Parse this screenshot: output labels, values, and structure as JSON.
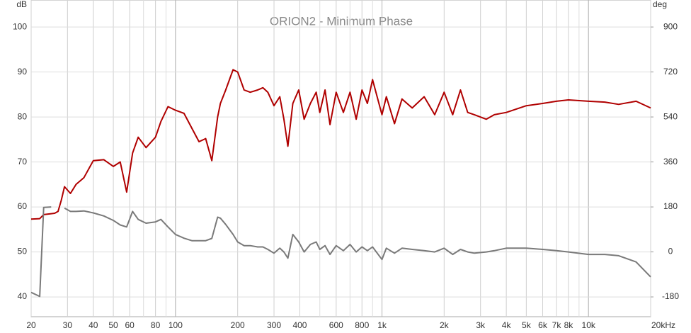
{
  "chart_data": {
    "type": "line",
    "title": "ORION2 - Minimum Phase",
    "ylabel": "dB",
    "y2label": "deg",
    "xscale": "log",
    "grid": true,
    "x": [
      20,
      22,
      23,
      25,
      26,
      27,
      28,
      29,
      31,
      33,
      36,
      40,
      45,
      50,
      54,
      58,
      62,
      66,
      72,
      80,
      85,
      92,
      100,
      110,
      120,
      130,
      140,
      150,
      160,
      165,
      175,
      190,
      200,
      215,
      230,
      250,
      265,
      280,
      300,
      320,
      335,
      350,
      370,
      395,
      420,
      450,
      480,
      500,
      530,
      560,
      600,
      650,
      700,
      750,
      800,
      850,
      900,
      1000,
      1050,
      1150,
      1250,
      1400,
      1600,
      1800,
      2000,
      2200,
      2400,
      2600,
      2800,
      3200,
      3500,
      4000,
      5000,
      6000,
      7000,
      8000,
      10000,
      12000,
      14000,
      17000,
      20000
    ],
    "series": [
      {
        "color": "#b00000",
        "values": [
          57.3,
          57.4,
          58.3,
          58.5,
          58.6,
          59,
          61.5,
          64.5,
          63,
          65,
          66.5,
          70.3,
          70.5,
          69,
          70,
          63.3,
          72,
          75.5,
          73.2,
          75.5,
          79,
          82.3,
          81.5,
          80.8,
          77.5,
          74.5,
          75.2,
          70.3,
          80,
          83,
          86,
          90.5,
          90,
          86,
          85.5,
          86,
          86.5,
          85.5,
          82.5,
          84.5,
          79.5,
          73.5,
          83,
          86,
          79.5,
          83,
          85.5,
          81,
          86,
          78.3,
          85.5,
          81,
          85.5,
          79.5,
          86,
          83,
          88.3,
          80.5,
          84.5,
          78.5,
          84,
          82,
          84.5,
          80.5,
          85.5,
          80.5,
          86,
          81,
          80.5,
          79.5,
          80.5,
          81,
          82.5,
          83,
          83.5,
          83.8,
          83.5,
          83.3,
          82.8,
          83.5,
          82
        ]
      },
      {
        "color": "#7a7a7a",
        "axis": "y2",
        "values": [
          -162,
          -178,
          178,
          180,
          null,
          -178,
          null,
          175,
          162,
          162,
          164,
          156,
          144,
          126,
          108,
          100,
          162,
          130,
          115,
          120,
          130,
          100,
          70,
          55,
          45,
          45,
          45,
          54,
          139,
          135,
          110,
          70,
          40,
          25,
          25,
          20,
          20,
          10,
          -5,
          15,
          0,
          -25,
          70,
          40,
          0,
          30,
          40,
          10,
          25,
          -10,
          25,
          5,
          30,
          0,
          20,
          5,
          20,
          -30,
          15,
          -5,
          15,
          10,
          5,
          0,
          15,
          -10,
          10,
          0,
          -5,
          0,
          5,
          15,
          15,
          10,
          5,
          0,
          -10,
          -10,
          -15,
          -40,
          -100
        ]
      }
    ],
    "xlim": [
      20,
      20000
    ],
    "xticks": [
      20,
      30,
      40,
      50,
      60,
      80,
      100,
      200,
      300,
      400,
      600,
      800,
      {
        "value": 1000,
        "label": "1k"
      },
      {
        "value": 2000,
        "label": "2k"
      },
      {
        "value": 3000,
        "label": "3k"
      },
      {
        "value": 4000,
        "label": "4k"
      },
      {
        "value": 5000,
        "label": "5k"
      },
      {
        "value": 6000,
        "label": "6k"
      },
      {
        "value": 7000,
        "label": "7k"
      },
      {
        "value": 8000,
        "label": "8k"
      },
      {
        "value": 10000,
        "label": "10k"
      },
      {
        "value": 20000,
        "label": "20kHz"
      }
    ],
    "ylim": [
      35.6,
      106
    ],
    "yticks": [
      40,
      50,
      60,
      70,
      80,
      90,
      100
    ],
    "y2lim": [
      -259.2,
      1008
    ],
    "y2ticks": [
      -180,
      0,
      180,
      360,
      540,
      720,
      900
    ]
  }
}
